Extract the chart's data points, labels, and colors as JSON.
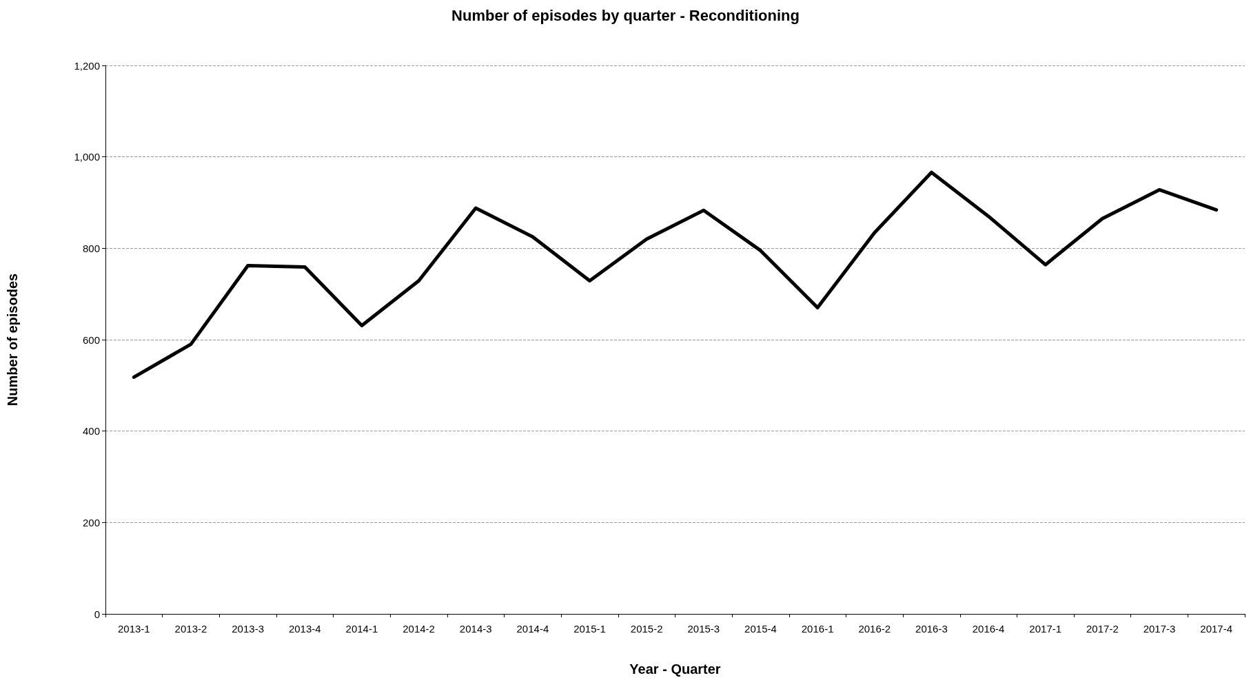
{
  "chart_data": {
    "type": "line",
    "title": "Number of episodes by quarter - Reconditioning",
    "xlabel": "Year - Quarter",
    "ylabel": "Number of episodes",
    "categories": [
      "2013-1",
      "2013-2",
      "2013-3",
      "2013-4",
      "2014-1",
      "2014-2",
      "2014-3",
      "2014-4",
      "2015-1",
      "2015-2",
      "2015-3",
      "2015-4",
      "2016-1",
      "2016-2",
      "2016-3",
      "2016-4",
      "2017-1",
      "2017-2",
      "2017-3",
      "2017-4"
    ],
    "series": [
      {
        "color": "#000000",
        "values": [
          518,
          590,
          762,
          759,
          631,
          729,
          888,
          825,
          729,
          820,
          883,
          795,
          670,
          834,
          966,
          870,
          764,
          865,
          928,
          884
        ]
      }
    ],
    "ylim": [
      0,
      1200
    ],
    "yticks": [
      0,
      200,
      400,
      600,
      800,
      {
        "value": 1000,
        "label": "1,000"
      },
      {
        "value": 1200,
        "label": "1,200"
      }
    ],
    "grid": "y",
    "marker": "none",
    "line_style": "solid"
  }
}
